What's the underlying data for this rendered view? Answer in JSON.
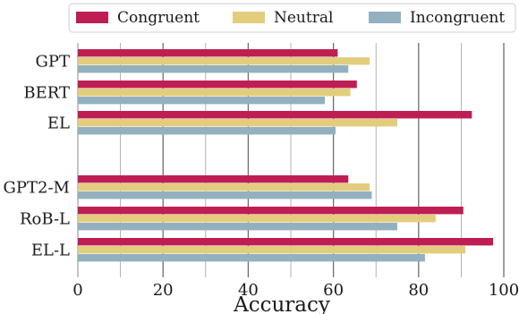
{
  "chart_data": {
    "type": "bar",
    "orientation": "horizontal",
    "categories": [
      "GPT",
      "BERT",
      "EL",
      "GPT2-M",
      "RoB-L",
      "EL-L"
    ],
    "series": [
      {
        "name": "Congruent",
        "color": "#be1e52",
        "values": [
          61,
          65.5,
          92.5,
          63.5,
          90.5,
          97.5
        ]
      },
      {
        "name": "Neutral",
        "color": "#e2cd7d",
        "values": [
          68.5,
          64,
          75,
          68.5,
          84,
          91
        ]
      },
      {
        "name": "Incongruent",
        "color": "#93b0c0",
        "values": [
          63.5,
          58,
          60.5,
          69,
          75,
          81.5
        ]
      }
    ],
    "xlabel": "Accuracy",
    "ylabel": "",
    "xlim": [
      0,
      100
    ],
    "xticks": [
      "0",
      "20",
      "40",
      "60",
      "80",
      "100"
    ],
    "grid": "vertical",
    "legend_position": "top"
  }
}
